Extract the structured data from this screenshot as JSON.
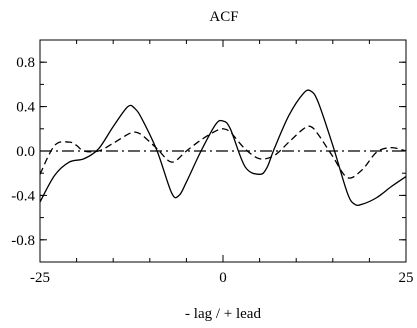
{
  "chart_data": {
    "type": "line",
    "title": "ACF",
    "xlabel": "- lag / + lead",
    "ylabel": "",
    "xlim": [
      -25,
      25
    ],
    "ylim": [
      -1.0,
      1.0
    ],
    "x_ticks": [
      -25,
      0,
      25
    ],
    "x_tick_labels": [
      "-25",
      "0",
      "25"
    ],
    "y_ticks": [
      -0.8,
      -0.4,
      0.0,
      0.4,
      0.8
    ],
    "y_tick_labels": [
      "-0.8",
      "-0.4",
      "0.0",
      "0.4",
      "0.8"
    ],
    "grid": false,
    "legend": "none",
    "series": [
      {
        "style": "solid",
        "color": "#000000",
        "x": [
          -25,
          -23,
          -21,
          -19,
          -17,
          -15,
          -13,
          -12,
          -11,
          -9,
          -7,
          -6,
          -5,
          -3,
          -1,
          0,
          1,
          3,
          5,
          6,
          7,
          9,
          11,
          12,
          13,
          15,
          17,
          18,
          19,
          21,
          23,
          25
        ],
        "y": [
          -0.46,
          -0.22,
          -0.1,
          -0.07,
          0.02,
          0.22,
          0.4,
          0.38,
          0.28,
          0.0,
          -0.38,
          -0.4,
          -0.28,
          0.0,
          0.24,
          0.27,
          0.2,
          -0.14,
          -0.21,
          -0.15,
          0.02,
          0.32,
          0.52,
          0.54,
          0.44,
          0.05,
          -0.38,
          -0.48,
          -0.48,
          -0.42,
          -0.32,
          -0.23
        ]
      },
      {
        "style": "dashed",
        "color": "#000000",
        "x": [
          -25,
          -23,
          -21,
          -20,
          -19,
          -17,
          -15,
          -13,
          -12,
          -11,
          -9,
          -7,
          -5,
          -3,
          -1,
          0,
          1,
          3,
          5,
          7,
          9,
          11,
          12,
          13,
          15,
          17,
          19,
          21,
          23,
          25
        ],
        "y": [
          -0.21,
          0.05,
          0.08,
          0.05,
          0.0,
          0.0,
          0.07,
          0.15,
          0.17,
          0.14,
          0.02,
          -0.1,
          0.0,
          0.1,
          0.18,
          0.2,
          0.17,
          0.02,
          -0.07,
          -0.04,
          0.08,
          0.2,
          0.22,
          0.15,
          -0.05,
          -0.24,
          -0.17,
          -0.01,
          0.03,
          0.0
        ]
      },
      {
        "style": "dash-dot",
        "color": "#000000",
        "x": [
          -25,
          25
        ],
        "y": [
          0.0,
          0.0
        ]
      }
    ]
  }
}
